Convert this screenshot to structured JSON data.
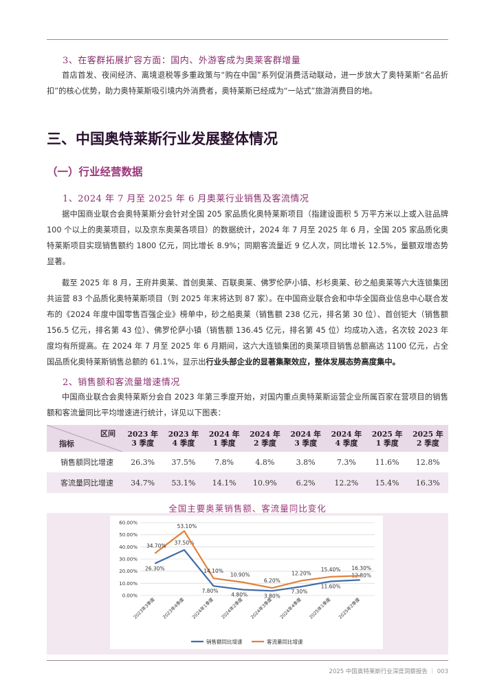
{
  "sections": {
    "sub3_title": "3、在客群拓展扩容方面：国内、外游客成为奥莱客群增量",
    "sub3_para": "首店首发、夜间经济、离境退税等多重政策与“购在中国”系列促消费活动联动，进一步放大了奥特莱斯“名品折扣”的核心优势，助力奥特莱斯吸引境内外消费者，奥特莱斯已经成为“一站式”旅游消费目的地。",
    "h1": "三、中国奥特莱斯行业发展整体情况",
    "h2": "（一）行业经营数据",
    "sub1_title": "1、2024 年 7 月至 2025 年 6 月奥莱行业销售及客流情况",
    "para1": "据中国商业联合会奥特莱斯分会针对全国 205 家品质化奥特莱斯项目（指建设面积 5 万平方米以上或入驻品牌 100 个以上的奥莱项目，以及京东奥莱各项目）的数据统计，2024 年 7 月至 2025 年 6 月，全国 205 家品质化奥特莱斯项目实现销售额约 1800 亿元，同比增长 8.9%；同期客流量近 9 亿人次，同比增长 12.5%，量额双增态势显著。",
    "para2_a": "截至 2025 年 8 月，王府井奥莱、首创奥莱、百联奥莱、佛罗伦萨小镇、杉杉奥莱、砂之船奥莱等六大连锁集团共运营 83 个品质化奥特莱斯项目（到 2025 年末将达到 87 家）。在中国商业联合会和中华全国商业信息中心联合发布的《2024 年度中国零售百强企业》榜单中，砂之船奥莱（销售额 238 亿元，排名第 30 位）、首创钜大（销售额 156.5 亿元，排名第 43 位）、佛罗伦萨小镇（销售额 136.45 亿元，排名第 45 位）均成功入选，名次较 2023 年度均有所提高。在 2024 年 7 月至 2025 年 6 月期间，这六大连锁集团的奥莱项目销售总额高达 1100 亿元，占全国品质化奥特莱斯销售总额的 61.1%，显示出",
    "para2_b": "行业头部企业的显著集聚效应，整体发展态势高度集中。",
    "sub2_title": "2、销售额和客流量增速情况",
    "para3": "中国商业联合会奥特莱斯分会自 2023 年第三季度开始，对国内重点奥特莱斯运营企业所属百家在营项目的销售额和客流量同比平均增速进行统计，详见以下图表："
  },
  "table": {
    "corner_top": "区间",
    "corner_bottom": "指标",
    "quarters": [
      {
        "year": "2023 年",
        "q": "3 季度"
      },
      {
        "year": "2023 年",
        "q": "4 季度"
      },
      {
        "year": "2024 年",
        "q": "1 季度"
      },
      {
        "year": "2024 年",
        "q": "2 季度"
      },
      {
        "year": "2024 年",
        "q": "3 季度"
      },
      {
        "year": "2024 年",
        "q": "4 季度"
      },
      {
        "year": "2025 年",
        "q": "1 季度"
      },
      {
        "year": "2025 年",
        "q": "2 季度"
      }
    ],
    "rows": [
      {
        "label": "销售额同比增速",
        "values": [
          "26.3%",
          "37.5%",
          "7.8%",
          "4.8%",
          "3.8%",
          "7.3%",
          "11.6%",
          "12.8%"
        ]
      },
      {
        "label": "客流量同比增速",
        "values": [
          "34.7%",
          "53.1%",
          "14.1%",
          "10.9%",
          "6.2%",
          "12.2%",
          "15.4%",
          "16.3%"
        ]
      }
    ]
  },
  "chart_title": "全国主要奥莱销售额、客流量同比变化",
  "chart_data": {
    "type": "line",
    "x": [
      "2023年3季度",
      "2023年4季度",
      "2024年1季度",
      "2024年2季度",
      "2024年3季度",
      "2024年4季度",
      "2025年1季度",
      "2025年2季度"
    ],
    "series": [
      {
        "name": "销售额同比增速",
        "color": "#3f6ba8",
        "values": [
          26.3,
          37.5,
          7.8,
          4.8,
          3.8,
          7.3,
          11.6,
          12.8
        ],
        "labels": [
          "26.30%",
          "37.50%",
          "7.80%",
          "4.80%",
          "3.80%",
          "7.30%",
          "11.60%",
          "12.80%"
        ]
      },
      {
        "name": "客流量同比增速",
        "color": "#e0803a",
        "values": [
          34.7,
          53.1,
          14.1,
          10.9,
          6.2,
          12.2,
          15.4,
          16.3
        ],
        "labels": [
          "34.70%",
          "53.10%",
          "14.10%",
          "10.90%",
          "6.20%",
          "12.20%",
          "15.40%",
          "16.30%"
        ]
      }
    ],
    "yticks": [
      "0.00%",
      "10.00%",
      "20.00%",
      "30.00%",
      "40.00%",
      "50.00%",
      "60.00%"
    ],
    "ylim": [
      0,
      60
    ],
    "grid": true,
    "legend": "bottom"
  },
  "footer": "2025 中国奥特莱斯行业深度洞察报告 ｜ 003"
}
